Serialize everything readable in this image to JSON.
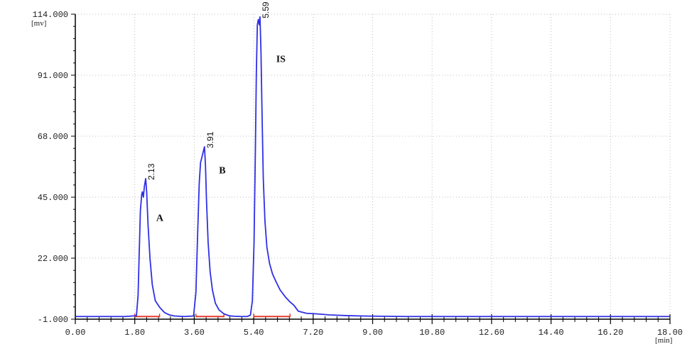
{
  "chart_data": {
    "type": "line",
    "x_unit_label": "[min]",
    "y_unit_label": "[mv]",
    "xlim": [
      0,
      18
    ],
    "ylim": [
      -1,
      114
    ],
    "x_ticks": [
      0,
      1.8,
      3.6,
      5.4,
      7.2,
      9.0,
      10.8,
      12.6,
      14.4,
      16.2,
      18.0
    ],
    "x_tick_labels": [
      "0.00",
      "1.80",
      "3.60",
      "5.40",
      "7.20",
      "9.00",
      "10.80",
      "12.60",
      "14.40",
      "16.20",
      "18.00"
    ],
    "y_ticks": [
      -1,
      22,
      45,
      68,
      91,
      114
    ],
    "y_tick_labels": [
      "-1.000",
      "22.000",
      "45.000",
      "68.000",
      "91.000",
      "114.000"
    ],
    "grid": true,
    "series": [
      {
        "color": "#2f2fe6",
        "x": [
          0.0,
          1.5,
          1.85,
          1.9,
          1.93,
          1.97,
          2.01,
          2.03,
          2.06,
          2.09,
          2.13,
          2.16,
          2.2,
          2.26,
          2.33,
          2.42,
          2.55,
          2.7,
          2.85,
          3.0,
          3.3,
          3.58,
          3.65,
          3.7,
          3.75,
          3.79,
          3.83,
          3.87,
          3.91,
          3.94,
          3.97,
          4.02,
          4.08,
          4.15,
          4.24,
          4.35,
          4.5,
          4.65,
          4.8,
          5.0,
          5.2,
          5.3,
          5.36,
          5.41,
          5.45,
          5.48,
          5.51,
          5.54,
          5.57,
          5.59,
          5.62,
          5.65,
          5.69,
          5.74,
          5.8,
          5.88,
          5.97,
          6.08,
          6.2,
          6.35,
          6.5,
          6.62,
          6.75,
          7.0,
          7.3,
          7.7,
          8.2,
          8.7,
          9.25,
          10.0,
          12.0,
          18.0
        ],
        "y": [
          0,
          0,
          0.3,
          8,
          22,
          40,
          46,
          47,
          45,
          49,
          52,
          47,
          35,
          22,
          12,
          6,
          3.5,
          1.5,
          0.6,
          0.2,
          0,
          0.2,
          9,
          30,
          50,
          58,
          60,
          62,
          64,
          57,
          44,
          28,
          17,
          10,
          5,
          2.5,
          1,
          0.3,
          0.1,
          0,
          0,
          0.5,
          6,
          28,
          62,
          92,
          110,
          112,
          110,
          113,
          100,
          78,
          52,
          36,
          26,
          20,
          16,
          13,
          10,
          7.5,
          5.5,
          4.2,
          2,
          1.2,
          1,
          0.6,
          0.35,
          0.2,
          0.1,
          0,
          0,
          0
        ]
      }
    ],
    "baseline_segments": [
      [
        1.8,
        2.55
      ],
      [
        3.65,
        4.5
      ],
      [
        5.4,
        6.5
      ]
    ],
    "peaks": [
      {
        "rt": 2.13,
        "height": 52,
        "rt_label": "2.13",
        "name": "A",
        "name_x": 2.45,
        "name_y": 36
      },
      {
        "rt": 3.91,
        "height": 64,
        "rt_label": "3.91",
        "name": "B",
        "name_x": 4.35,
        "name_y": 54
      },
      {
        "rt": 5.59,
        "height": 113,
        "rt_label": "5.59",
        "name": "IS",
        "name_x": 6.08,
        "name_y": 96
      }
    ],
    "trace_color": "#2f2fe6",
    "baseline_color": "#e33b2e",
    "axis_color": "#000000",
    "grid_color": "#bfbfbf"
  }
}
